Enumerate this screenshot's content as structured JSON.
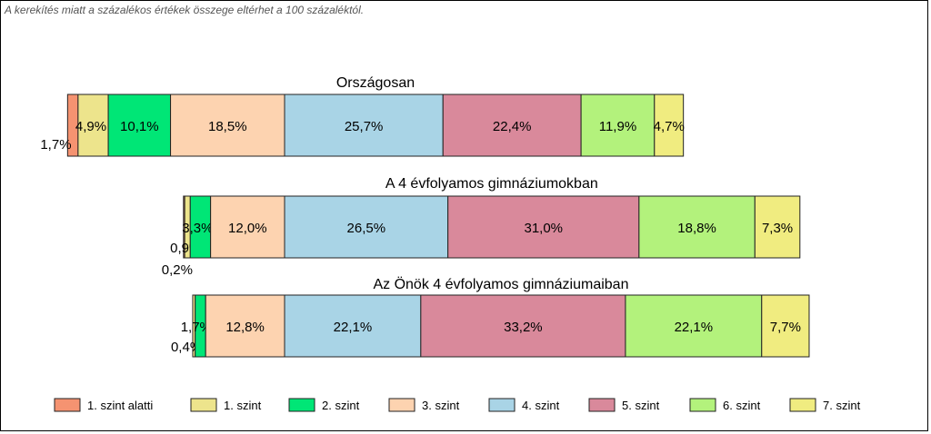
{
  "note": "A kerekítés miatt a  százalékos értékek összege eltérhet a 100 százaléktól.",
  "chart_data": {
    "type": "bar",
    "orientation": "horizontal-stacked",
    "categories": [
      "1. szint alatti",
      "1. szint",
      "2. szint",
      "3. szint",
      "4. szint",
      "5. szint",
      "6. szint",
      "7. szint"
    ],
    "colors": [
      "#f59371",
      "#ede48c",
      "#00e676",
      "#fdd3b0",
      "#a9d4e6",
      "#d9899b",
      "#b3f27c",
      "#f0ec80"
    ],
    "legend_position": "bottom",
    "bars": [
      {
        "title": "Országosan",
        "values": [
          1.7,
          4.9,
          10.1,
          18.5,
          25.7,
          22.4,
          11.9,
          4.7
        ],
        "labels": [
          "1,7%",
          "4,9%",
          "10,1%",
          "18,5%",
          "25,7%",
          "22,4%",
          "11,9%",
          "4,7%"
        ]
      },
      {
        "title": "A 4 évfolyamos gimnáziumokban",
        "values": [
          0.2,
          0.9,
          3.3,
          12.0,
          26.5,
          31.0,
          18.8,
          7.3
        ],
        "labels": [
          "0,2%",
          "0,9%",
          "3,3%",
          "12,0%",
          "26,5%",
          "31,0%",
          "18,8%",
          "7,3%"
        ]
      },
      {
        "title": "Az Önök 4 évfolyamos gimnáziumaiban",
        "values": [
          0,
          0.4,
          1.7,
          12.8,
          22.1,
          33.2,
          22.1,
          7.7
        ],
        "labels": [
          "",
          "0,4%",
          "1,7%",
          "12,8%",
          "22,1%",
          "33,2%",
          "22,1%",
          "7,7%"
        ]
      }
    ]
  }
}
